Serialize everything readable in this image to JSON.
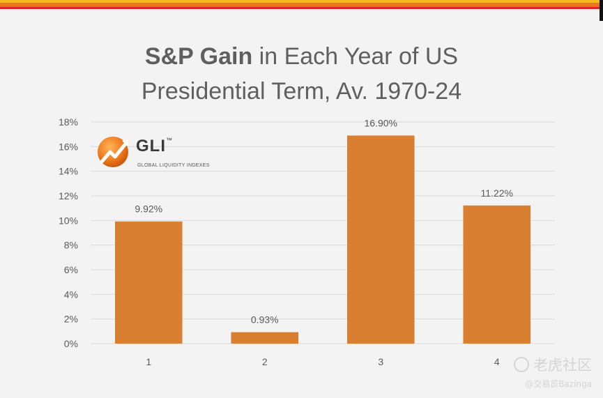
{
  "title": {
    "bold": "S&P Gain",
    "rest": " in Each Year of US",
    "line2": "Presidential Term, Av. 1970-24"
  },
  "logo": {
    "name": "GLI",
    "tm": "™",
    "subtitle": "GLOBAL LIQUIDITY INDEXES"
  },
  "watermark": {
    "line1": "老虎社区",
    "line2": "@交易员Bazinga"
  },
  "colors": {
    "bar": "#d87f31",
    "grid": "#d9d9d9",
    "axis_text": "#595959",
    "title": "#5f5f5f"
  },
  "chart_data": {
    "type": "bar",
    "title": "S&P Gain in Each Year of US Presidential Term, Av. 1970-24",
    "categories": [
      "1",
      "2",
      "3",
      "4"
    ],
    "values": [
      9.92,
      0.93,
      16.9,
      11.22
    ],
    "data_labels": [
      "9.92%",
      "0.93%",
      "16.90%",
      "11.22%"
    ],
    "ylim": [
      0,
      18
    ],
    "yticks": [
      0,
      2,
      4,
      6,
      8,
      10,
      12,
      14,
      16,
      18
    ],
    "ytick_labels": [
      "0%",
      "2%",
      "4%",
      "6%",
      "8%",
      "10%",
      "12%",
      "14%",
      "16%",
      "18%"
    ],
    "xlabel": "",
    "ylabel": "",
    "grid": true,
    "legend": "none"
  }
}
